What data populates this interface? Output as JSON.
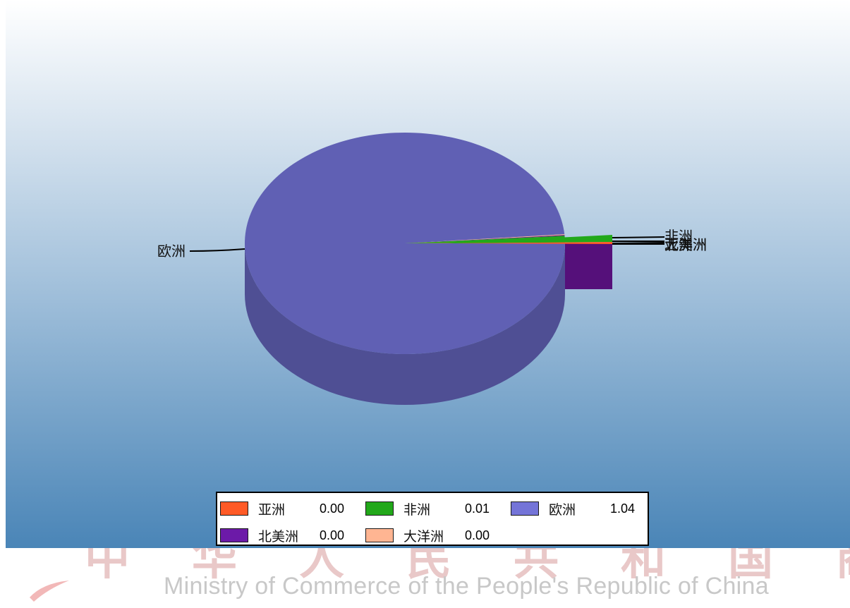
{
  "chart_data": {
    "type": "pie",
    "style": "3d",
    "slices": [
      {
        "label": "亚洲",
        "value": 0.0,
        "display": "0.00",
        "color": "#ff5a26"
      },
      {
        "label": "非洲",
        "value": 0.01,
        "display": "0.01",
        "color": "#22a81a"
      },
      {
        "label": "欧洲",
        "value": 1.04,
        "display": "1.04",
        "color": "#6060b4"
      },
      {
        "label": "北美洲",
        "value": 0.0,
        "display": "0.00",
        "color": "#55107a"
      },
      {
        "label": "大洋洲",
        "value": 0.0,
        "display": "0.00",
        "color": "#ffb592"
      }
    ],
    "legend_position": "bottom",
    "legend_colors": [
      "#ff5a26",
      "#22a81a",
      "#7474d8",
      "#6c1aa8",
      "#ffb592"
    ]
  },
  "watermark": {
    "english": "Ministry of Commerce of the People's Republic of China",
    "chinese": "中华人民共和国商务部"
  }
}
